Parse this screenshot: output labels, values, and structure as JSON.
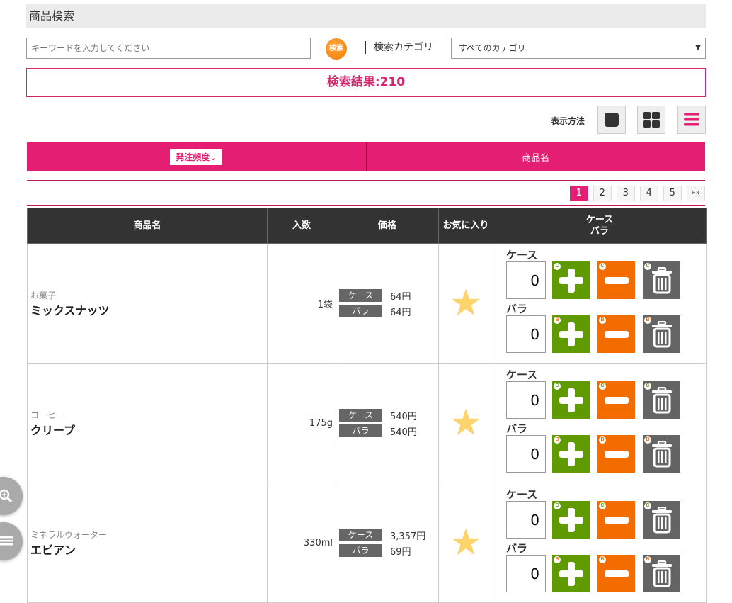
{
  "header": {
    "title": "商品検索"
  },
  "search": {
    "placeholder": "キーワードを入力してください",
    "button": "検索",
    "category_label": "検索カテゴリ",
    "category_value": "すべてのカテゴリ"
  },
  "result": {
    "text": "検索結果:210"
  },
  "display": {
    "label": "表示方法",
    "modes": [
      "single",
      "grid",
      "list"
    ],
    "active": "list"
  },
  "sort": {
    "frequency": "発注頻度",
    "name": "商品名"
  },
  "pagination": {
    "pages": [
      "1",
      "2",
      "3",
      "4",
      "5"
    ],
    "current": "1",
    "next": "»»"
  },
  "table": {
    "headers": [
      "商品名",
      "入数",
      "価格",
      "お気に入り",
      "ケース\nバラ"
    ],
    "case_label": "ケース",
    "bara_label": "バラ",
    "case_badge": "C",
    "bara_badge": "B",
    "rows": [
      {
        "category": "お菓子",
        "name": "ミックスナッツ",
        "qty": "1袋",
        "case_price": "64円",
        "bara_price": "64円",
        "favorite": true,
        "case_count": "0",
        "bara_count": "0"
      },
      {
        "category": "コーヒー",
        "name": "クリープ",
        "qty": "175g",
        "case_price": "540円",
        "bara_price": "540円",
        "favorite": true,
        "case_count": "0",
        "bara_count": "0"
      },
      {
        "category": "ミネラルウォーター",
        "name": "エビアン",
        "qty": "330ml",
        "case_price": "3,357円",
        "bara_price": "69円",
        "favorite": true,
        "case_count": "0",
        "bara_count": "0"
      }
    ]
  },
  "colors": {
    "accent": "#e41f73",
    "plus": "#5f9b00",
    "minus": "#f36c00",
    "trash": "#646464",
    "star": "#fcd46b"
  }
}
